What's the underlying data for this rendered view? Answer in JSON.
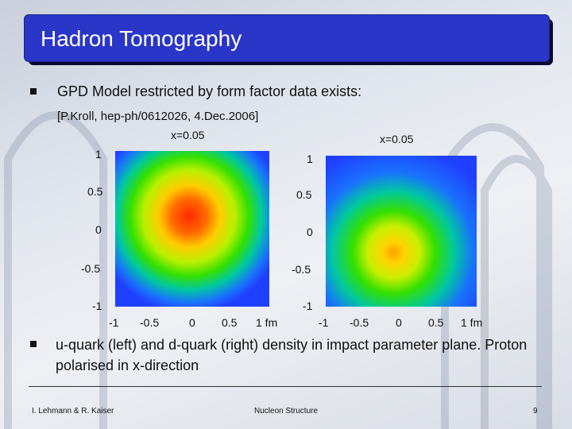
{
  "title": "Hadron Tomography",
  "bullets": [
    "GPD Model restricted by form factor data exists:",
    "u-quark (left) and d-quark (right) density in impact parameter plane. Proton polarised in x-direction"
  ],
  "reference": "[P.Kroll, hep-ph/0612026, 4.Dec.2006]",
  "plots": [
    {
      "label": "x=0.05",
      "yticks": [
        "1",
        "0.5",
        "0",
        "-0.5",
        "-1"
      ],
      "xticks": [
        "-1",
        "-0.5",
        "0",
        "0.5",
        "1 fm"
      ]
    },
    {
      "label": "x=0.05",
      "yticks": [
        "1",
        "0.5",
        "0",
        "-0.5",
        "-1"
      ],
      "xticks": [
        "-1",
        "-0.5",
        "0",
        "0.5",
        "1 fm"
      ]
    }
  ],
  "footer": {
    "left": "I. Lehmann & R. Kaiser",
    "center": "Nucleon Structure",
    "page": "9"
  },
  "colors": {
    "title_bar": "#2a36c8",
    "plot_bg": "#1f3fff",
    "plot_mid": "#35e000",
    "plot_hot": "#ff2a00"
  }
}
